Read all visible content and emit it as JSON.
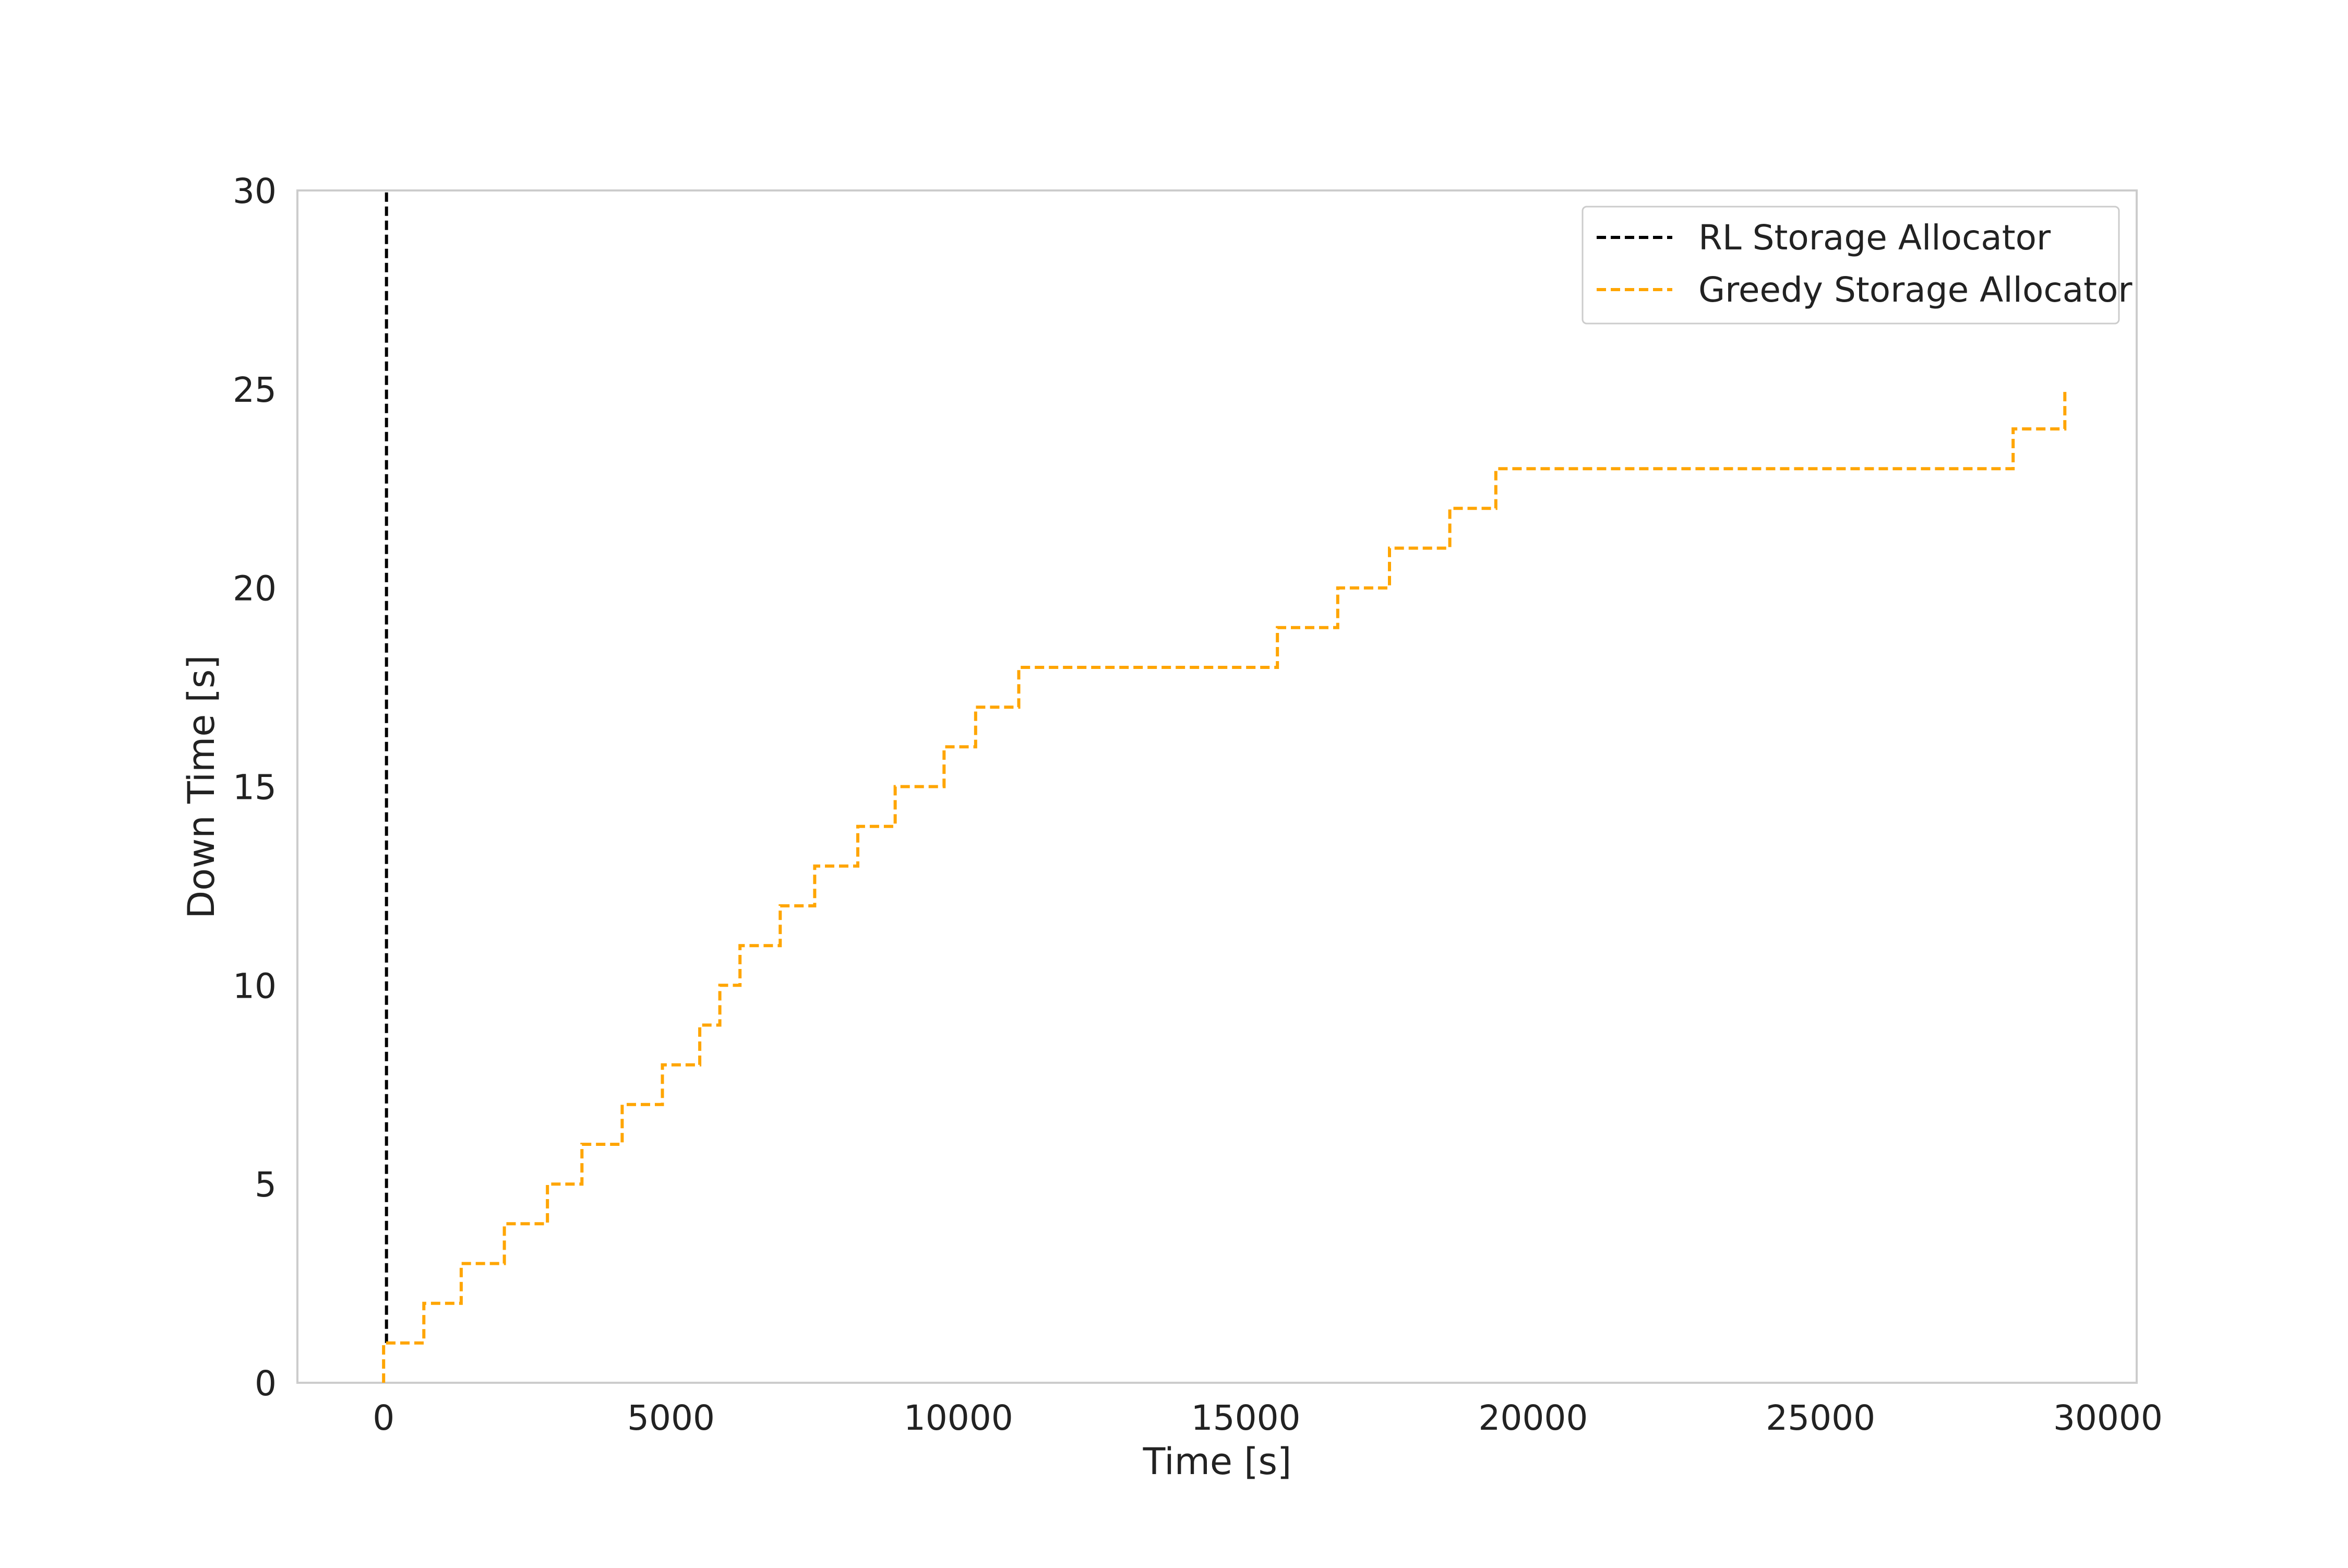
{
  "chart_data": {
    "type": "line",
    "title": "",
    "xlabel": "Time [s]",
    "ylabel": "Down Time [s]",
    "xlim": [
      -1500,
      30500
    ],
    "ylim": [
      0,
      30
    ],
    "x_ticks": [
      0,
      5000,
      10000,
      15000,
      20000,
      25000,
      30000
    ],
    "y_ticks": [
      0,
      5,
      10,
      15,
      20,
      25,
      30
    ],
    "x_tick_labels": [
      "0",
      "5000",
      "10000",
      "15000",
      "20000",
      "25000",
      "30000"
    ],
    "y_tick_labels": [
      "0",
      "5",
      "10",
      "15",
      "20",
      "25",
      "30"
    ],
    "grid": false,
    "legend_position": "top-right",
    "series": [
      {
        "name": "RL Storage Allocator",
        "color": "#000000",
        "line_style": "dashed",
        "step": "post",
        "points": [
          [
            50,
            1
          ],
          [
            50,
            30
          ]
        ]
      },
      {
        "name": "Greedy Storage Allocator",
        "color": "#ffa500",
        "line_style": "dashed",
        "step": "post",
        "points": [
          [
            0,
            0
          ],
          [
            0,
            1
          ],
          [
            700,
            2
          ],
          [
            1350,
            3
          ],
          [
            2100,
            4
          ],
          [
            2850,
            5
          ],
          [
            3450,
            6
          ],
          [
            4150,
            7
          ],
          [
            4850,
            8
          ],
          [
            5500,
            9
          ],
          [
            5850,
            10
          ],
          [
            6200,
            11
          ],
          [
            6900,
            12
          ],
          [
            7500,
            13
          ],
          [
            8250,
            14
          ],
          [
            8900,
            15
          ],
          [
            9750,
            16
          ],
          [
            10300,
            17
          ],
          [
            11050,
            18
          ],
          [
            15550,
            19
          ],
          [
            16600,
            20
          ],
          [
            17500,
            21
          ],
          [
            18550,
            22
          ],
          [
            19350,
            23
          ],
          [
            28350,
            24
          ],
          [
            29250,
            25
          ]
        ]
      }
    ]
  }
}
